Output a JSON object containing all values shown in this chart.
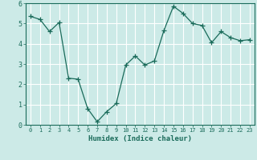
{
  "x": [
    0,
    1,
    2,
    3,
    4,
    5,
    6,
    7,
    8,
    9,
    10,
    11,
    12,
    13,
    14,
    15,
    16,
    17,
    18,
    19,
    20,
    21,
    22,
    23
  ],
  "y": [
    5.35,
    5.2,
    4.6,
    5.05,
    2.3,
    2.25,
    0.8,
    0.15,
    0.65,
    1.05,
    2.95,
    3.4,
    2.95,
    3.15,
    4.65,
    5.85,
    5.5,
    5.0,
    4.9,
    4.05,
    4.6,
    4.3,
    4.15,
    4.2
  ],
  "line_color": "#1a6b5a",
  "marker": "+",
  "marker_size": 4,
  "background_color": "#cceae7",
  "grid_color": "#ffffff",
  "xlabel": "Humidex (Indice chaleur)",
  "ylim": [
    0,
    6
  ],
  "xlim_min": -0.5,
  "xlim_max": 23.5,
  "yticks": [
    0,
    1,
    2,
    3,
    4,
    5,
    6
  ],
  "xticks": [
    0,
    1,
    2,
    3,
    4,
    5,
    6,
    7,
    8,
    9,
    10,
    11,
    12,
    13,
    14,
    15,
    16,
    17,
    18,
    19,
    20,
    21,
    22,
    23
  ]
}
